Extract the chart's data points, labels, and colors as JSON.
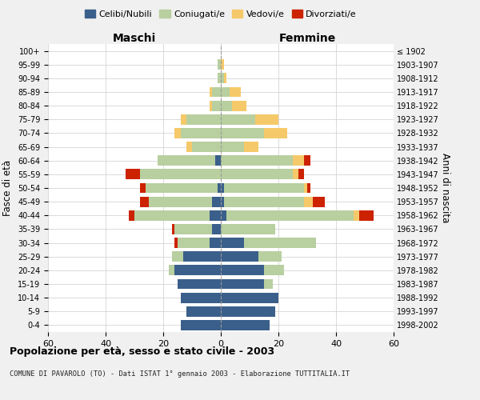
{
  "age_groups": [
    "0-4",
    "5-9",
    "10-14",
    "15-19",
    "20-24",
    "25-29",
    "30-34",
    "35-39",
    "40-44",
    "45-49",
    "50-54",
    "55-59",
    "60-64",
    "65-69",
    "70-74",
    "75-79",
    "80-84",
    "85-89",
    "90-94",
    "95-99",
    "100+"
  ],
  "birth_years": [
    "1998-2002",
    "1993-1997",
    "1988-1992",
    "1983-1987",
    "1978-1982",
    "1973-1977",
    "1968-1972",
    "1963-1967",
    "1958-1962",
    "1953-1957",
    "1948-1952",
    "1943-1947",
    "1938-1942",
    "1933-1937",
    "1928-1932",
    "1923-1927",
    "1918-1922",
    "1913-1917",
    "1908-1912",
    "1903-1907",
    "≤ 1902"
  ],
  "maschi": {
    "celibe": [
      14,
      12,
      14,
      15,
      16,
      13,
      4,
      3,
      4,
      3,
      1,
      0,
      2,
      0,
      0,
      0,
      0,
      0,
      0,
      0,
      0
    ],
    "coniugato": [
      0,
      0,
      0,
      0,
      2,
      4,
      11,
      13,
      26,
      22,
      25,
      28,
      20,
      10,
      14,
      12,
      3,
      3,
      1,
      1,
      0
    ],
    "vedovo": [
      0,
      0,
      0,
      0,
      0,
      0,
      0,
      0,
      0,
      0,
      0,
      0,
      0,
      2,
      2,
      2,
      1,
      1,
      0,
      0,
      0
    ],
    "divorziato": [
      0,
      0,
      0,
      0,
      0,
      0,
      1,
      1,
      2,
      3,
      2,
      5,
      0,
      0,
      0,
      0,
      0,
      0,
      0,
      0,
      0
    ]
  },
  "femmine": {
    "nubile": [
      17,
      19,
      20,
      15,
      15,
      13,
      8,
      0,
      2,
      1,
      1,
      0,
      0,
      0,
      0,
      0,
      0,
      0,
      0,
      0,
      0
    ],
    "coniugata": [
      0,
      0,
      0,
      3,
      7,
      8,
      25,
      19,
      44,
      28,
      28,
      25,
      25,
      8,
      15,
      12,
      4,
      3,
      1,
      0,
      0
    ],
    "vedova": [
      0,
      0,
      0,
      0,
      0,
      0,
      0,
      0,
      2,
      3,
      1,
      2,
      4,
      5,
      8,
      8,
      5,
      4,
      1,
      1,
      0
    ],
    "divorziata": [
      0,
      0,
      0,
      0,
      0,
      0,
      0,
      0,
      5,
      4,
      1,
      2,
      2,
      0,
      0,
      0,
      0,
      0,
      0,
      0,
      0
    ]
  },
  "colors": {
    "celibe": "#3a5f8a",
    "coniugato": "#b8cfa0",
    "vedovo": "#f5c96a",
    "divorziato": "#cc2200"
  },
  "xlim": 60,
  "title": "Popolazione per età, sesso e stato civile - 2003",
  "subtitle": "COMUNE DI PAVAROLO (TO) - Dati ISTAT 1° gennaio 2003 - Elaborazione TUTTITALIA.IT",
  "ylabel": "Fasce di età",
  "right_ylabel": "Anni di nascita",
  "label_left": "Maschi",
  "label_right": "Femmine",
  "bg_color": "#f0f0f0",
  "plot_bg": "#ffffff"
}
